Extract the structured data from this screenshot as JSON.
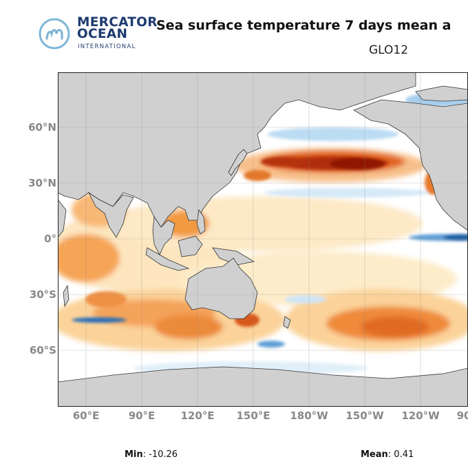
{
  "logo": {
    "line1": "MERCATOR",
    "line2": "OCEAN",
    "line3": "INTERNATIONAL",
    "icon": "mercator-m-icon",
    "brand_color": "#1e3b6f",
    "icon_color": "#7fb6d6"
  },
  "title": "Sea surface temperature 7 days mean a",
  "subtitle": "GLO12",
  "map": {
    "lat_labels": [
      "60°N",
      "30°N",
      "0°",
      "30°S",
      "60°S"
    ],
    "lon_labels": [
      "60°E",
      "90°E",
      "120°E",
      "150°E",
      "180°W",
      "150°W",
      "120°W",
      "90"
    ],
    "land_color": "#d0d0d0",
    "ocean_neutral": "#ffffff",
    "warm_colors": [
      "#fde9c6",
      "#fbb865",
      "#ef7a1f",
      "#c93a0e",
      "#8f1306"
    ],
    "cool_colors": [
      "#e3f1fb",
      "#9cc9ec",
      "#3a88c9",
      "#0e3f8a"
    ]
  },
  "stats": {
    "min_label": "Min",
    "min_value": ": -10.26",
    "mean_label": "Mean",
    "mean_value": ": 0.41"
  }
}
